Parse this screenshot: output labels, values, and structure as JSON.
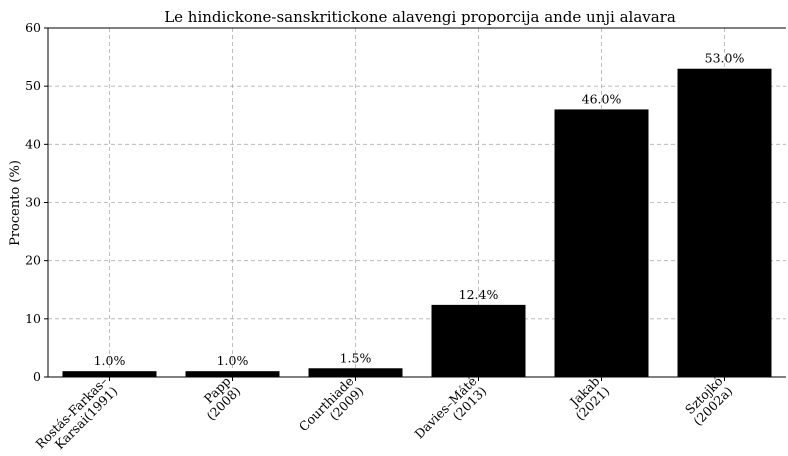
{
  "chart_data": {
    "type": "bar",
    "title": "Le hindickone-sanskritickone alavengi proporcija ande unji alavara",
    "xlabel": "",
    "ylabel": "Procento (%)",
    "ylim": [
      0,
      60
    ],
    "yticks": [
      0,
      10,
      20,
      30,
      40,
      50,
      60
    ],
    "grid": true,
    "categories": [
      [
        "Rostás-Farkas–",
        "Karsai(1991)"
      ],
      [
        "Papp",
        "(2008)"
      ],
      [
        "Courthiade",
        "(2009)"
      ],
      [
        "Davies–Máté",
        "(2013)"
      ],
      [
        "Jakab",
        "(2021)"
      ],
      [
        "Sztojkó",
        "(2002a)"
      ]
    ],
    "values": [
      1.0,
      1.0,
      1.5,
      12.4,
      46.0,
      53.0
    ],
    "data_labels": [
      "1.0%",
      "1.0%",
      "1.5%",
      "12.4%",
      "46.0%",
      "53.0%"
    ],
    "bar_color": "#000000",
    "grid_color": "#b0b0b0"
  }
}
